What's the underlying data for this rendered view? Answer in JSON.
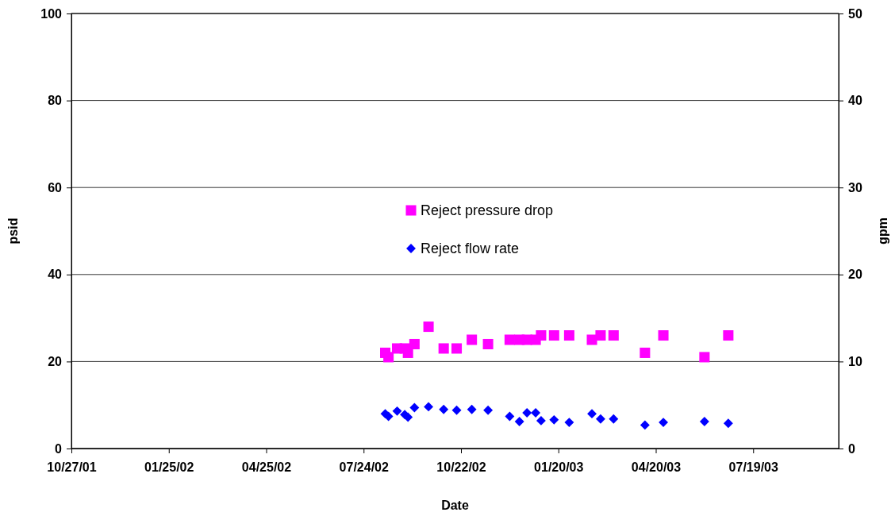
{
  "chart_data": {
    "type": "scatter",
    "xlabel": "Date",
    "ylabel": "psid",
    "y2label": "gpm",
    "x": [
      "2002-08-13",
      "2002-08-16",
      "2002-08-24",
      "2002-08-31",
      "2002-09-03",
      "2002-09-09",
      "2002-09-22",
      "2002-10-06",
      "2002-10-18",
      "2002-11-01",
      "2002-11-16",
      "2002-12-06",
      "2002-12-15",
      "2002-12-22",
      "2002-12-30",
      "2003-01-04",
      "2003-01-16",
      "2003-01-30",
      "2003-02-20",
      "2003-02-28",
      "2003-03-12",
      "2003-04-10",
      "2003-04-27",
      "2003-06-04",
      "2003-06-26"
    ],
    "series": [
      {
        "name": "Reject pressure drop",
        "color": "#ff00ff",
        "marker": "square",
        "values": [
          22,
          21,
          23,
          23,
          22,
          24,
          28,
          23,
          23,
          25,
          24,
          25,
          25,
          25,
          25,
          26,
          26,
          26,
          25,
          26,
          26,
          22,
          26,
          21,
          26
        ]
      },
      {
        "name": "Reject flow rate",
        "color": "#0000ff",
        "marker": "diamond",
        "axis": "y2",
        "values": [
          4.0,
          3.7,
          4.3,
          3.9,
          3.6,
          4.7,
          4.8,
          4.5,
          4.4,
          4.5,
          4.4,
          3.7,
          3.1,
          4.1,
          4.1,
          3.2,
          3.3,
          3.0,
          4.0,
          3.4,
          3.4,
          2.7,
          3.0,
          3.1,
          2.9
        ]
      }
    ],
    "xlim": [
      "2001-10-27",
      "2003-10-06"
    ],
    "xticks": [
      {
        "value": "2001-10-27",
        "label": "10/27/01"
      },
      {
        "value": "2002-01-25",
        "label": "01/25/02"
      },
      {
        "value": "2002-04-25",
        "label": "04/25/02"
      },
      {
        "value": "2002-07-24",
        "label": "07/24/02"
      },
      {
        "value": "2002-10-22",
        "label": "10/22/02"
      },
      {
        "value": "2003-01-20",
        "label": "01/20/03"
      },
      {
        "value": "2003-04-20",
        "label": "04/20/03"
      },
      {
        "value": "2003-07-19",
        "label": "07/19/03"
      }
    ],
    "ylim": [
      0,
      100
    ],
    "yticks": [
      0,
      20,
      40,
      60,
      80,
      100
    ],
    "y2lim": [
      0,
      50
    ],
    "y2ticks": [
      0,
      10,
      20,
      30,
      40,
      50
    ],
    "grid": "y",
    "legend": "center"
  }
}
